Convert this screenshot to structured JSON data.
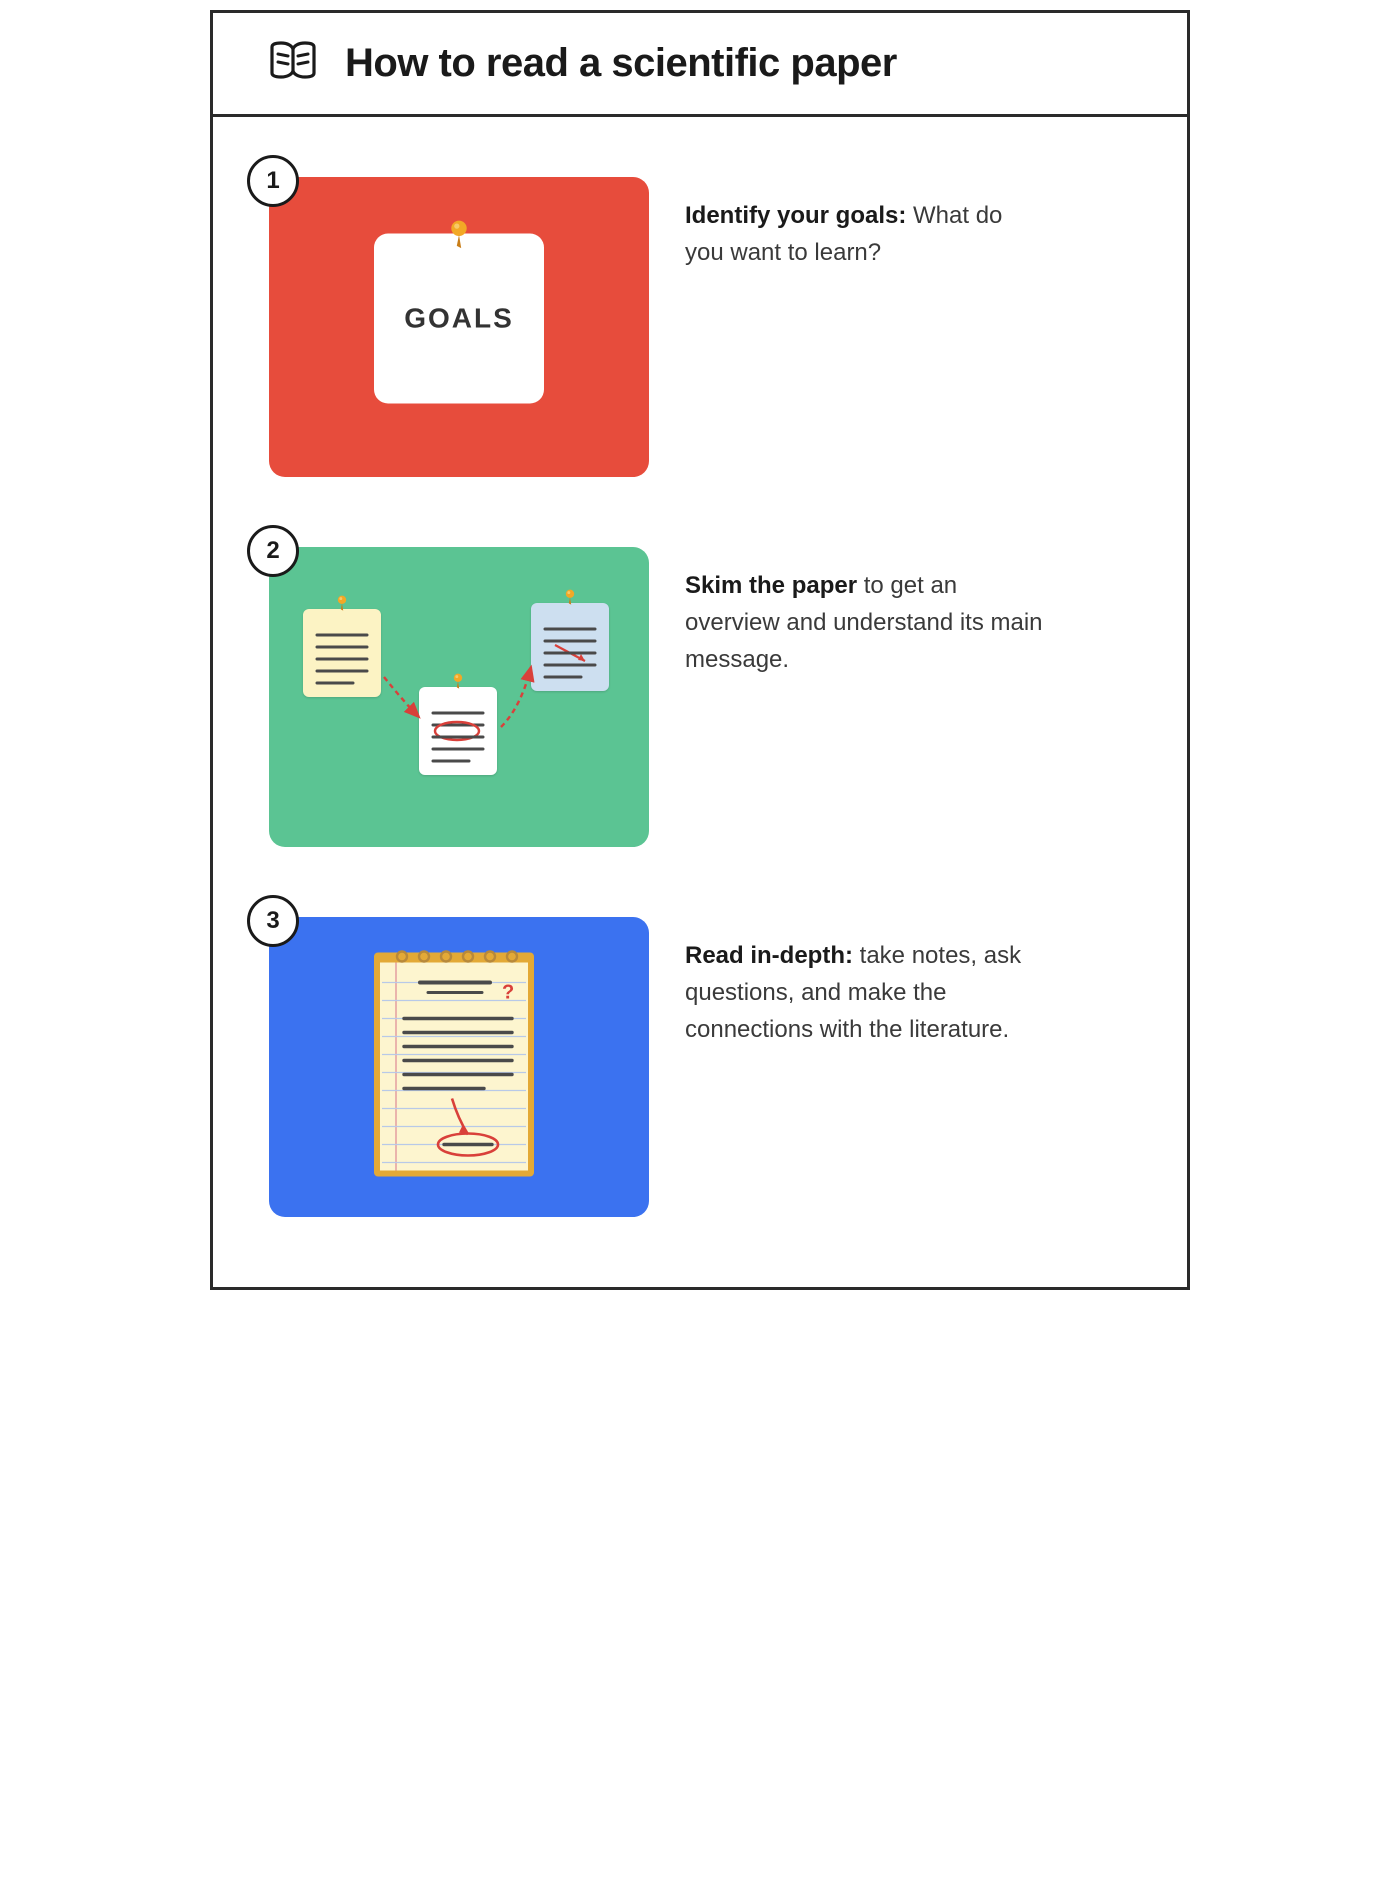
{
  "title": "How to read a scientific paper",
  "colors": {
    "border": "#2a2a2a",
    "text": "#3a3a3a",
    "heading": "#1a1a1a",
    "panel1": "#e74c3c",
    "panel2": "#5bc493",
    "panel3": "#3b72f0",
    "sticky_yellow": "#fcf3c4",
    "sticky_blue": "#cddff0",
    "notepad_border": "#e3a936",
    "notepad_paper": "#fdf5cf",
    "notepad_rule": "#b8c9e8",
    "notepad_margin": "#e6a3a3",
    "ink": "#4a4a4a",
    "red_ink": "#d9403a",
    "pin_head": "#f2a826",
    "pin_shine": "#f7c968"
  },
  "steps": [
    {
      "num": "1",
      "panel_color": "#e74c3c",
      "note_label": "GOALS",
      "caption_bold": "Identify your goals:",
      "caption_rest": " What do you want to learn?"
    },
    {
      "num": "2",
      "panel_color": "#5bc493",
      "caption_bold": "Skim the paper",
      "caption_rest": " to get an overview and understand its main message."
    },
    {
      "num": "3",
      "panel_color": "#3b72f0",
      "caption_bold": "Read in-depth:",
      "caption_rest": " take notes, ask questions, and make the connections with the literature."
    }
  ]
}
